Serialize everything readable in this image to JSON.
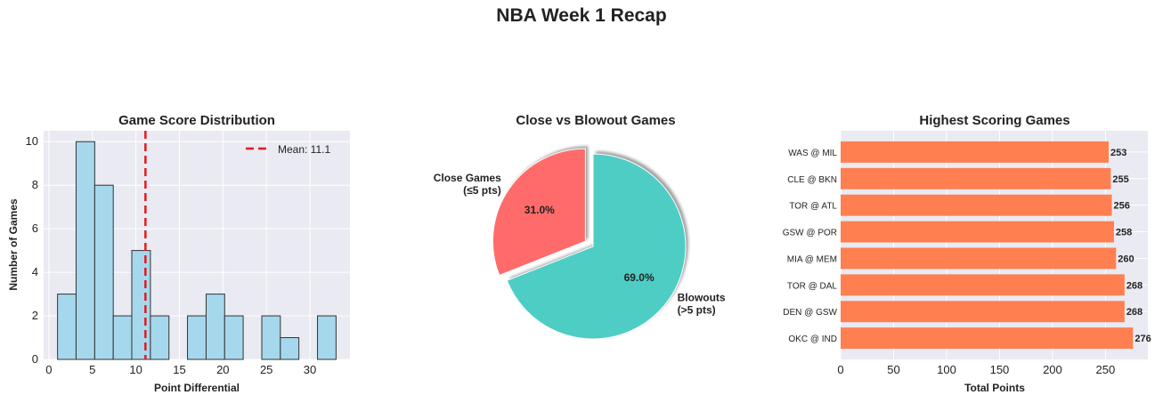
{
  "suptitle": "NBA Week 1 Recap",
  "chart_data": [
    {
      "type": "bar",
      "subtype": "histogram",
      "title": "Game Score Distribution",
      "xlabel": "Point Differential",
      "ylabel": "Number of Games",
      "bins": [
        {
          "start": 1.0,
          "end": 3.13,
          "count": 3
        },
        {
          "start": 3.13,
          "end": 5.27,
          "count": 10
        },
        {
          "start": 5.27,
          "end": 7.4,
          "count": 8
        },
        {
          "start": 7.4,
          "end": 9.53,
          "count": 2
        },
        {
          "start": 9.53,
          "end": 11.67,
          "count": 5
        },
        {
          "start": 11.67,
          "end": 13.8,
          "count": 2
        },
        {
          "start": 13.8,
          "end": 15.93,
          "count": 0
        },
        {
          "start": 15.93,
          "end": 18.07,
          "count": 2
        },
        {
          "start": 18.07,
          "end": 20.2,
          "count": 3
        },
        {
          "start": 20.2,
          "end": 22.33,
          "count": 2
        },
        {
          "start": 22.33,
          "end": 24.47,
          "count": 0
        },
        {
          "start": 24.47,
          "end": 26.6,
          "count": 2
        },
        {
          "start": 26.6,
          "end": 28.73,
          "count": 1
        },
        {
          "start": 28.73,
          "end": 30.87,
          "count": 0
        },
        {
          "start": 30.87,
          "end": 33.0,
          "count": 2
        }
      ],
      "mean": 11.1,
      "mean_label": "Mean: 11.1",
      "xlim": [
        -0.6,
        34.6
      ],
      "ylim": [
        0,
        10.5
      ],
      "xticks": [
        0,
        5,
        10,
        15,
        20,
        25,
        30
      ],
      "yticks": [
        0,
        2,
        4,
        6,
        8,
        10
      ],
      "bar_color": "#a6d8ed",
      "edge_color": "#333333",
      "mean_color": "#e31a1c",
      "legend_position": "upper-right",
      "grid": true
    },
    {
      "type": "pie",
      "title": "Close vs Blowout Games",
      "slices": [
        {
          "label_lines": [
            "Close Games",
            "(≤5 pts)"
          ],
          "value": 31.0,
          "pct_label": "31.0%",
          "color": "#ff6b6b",
          "exploded": true
        },
        {
          "label_lines": [
            "Blowouts",
            "(>5 pts)"
          ],
          "value": 69.0,
          "pct_label": "69.0%",
          "color": "#4ecdc4",
          "exploded": false
        }
      ],
      "shadow": true
    },
    {
      "type": "bar",
      "orientation": "horizontal",
      "title": "Highest Scoring Games",
      "xlabel": "Total Points",
      "ylabel": "",
      "categories": [
        "WAS @ MIL",
        "CLE @ BKN",
        "TOR @ ATL",
        "GSW @ POR",
        "MIA @ MEM",
        "TOR @ DAL",
        "DEN @ GSW",
        "OKC @ IND"
      ],
      "values": [
        253,
        255,
        256,
        258,
        260,
        268,
        268,
        276
      ],
      "xlim": [
        0,
        290
      ],
      "xticks": [
        0,
        50,
        100,
        150,
        200,
        250
      ],
      "bar_color": "#ff7f50",
      "grid": true
    }
  ]
}
